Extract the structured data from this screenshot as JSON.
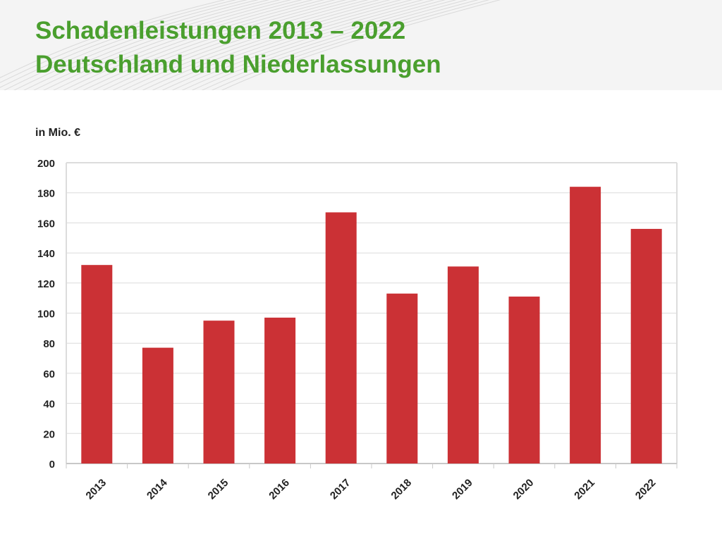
{
  "header": {
    "title_line1": "Schadenleistungen 2013 – 2022",
    "title_line2": "Deutschland und Niederlassungen"
  },
  "colors": {
    "title": "#4a9f2e",
    "bar": "#cb3135",
    "grid": "#dcdcdc",
    "axis_text": "#222222",
    "header_bg": "#f4f4f4"
  },
  "chart_data": {
    "type": "bar",
    "ylabel": "in Mio. €",
    "categories": [
      "2013",
      "2014",
      "2015",
      "2016",
      "2017",
      "2018",
      "2019",
      "2020",
      "2021",
      "2022"
    ],
    "values": [
      132,
      77,
      95,
      97,
      167,
      113,
      131,
      111,
      184,
      156
    ],
    "ylim": [
      0,
      200
    ],
    "yticks": [
      "0",
      "20",
      "40",
      "60",
      "80",
      "100",
      "120",
      "140",
      "160",
      "180",
      "200"
    ],
    "grid": true,
    "legend": "none"
  }
}
